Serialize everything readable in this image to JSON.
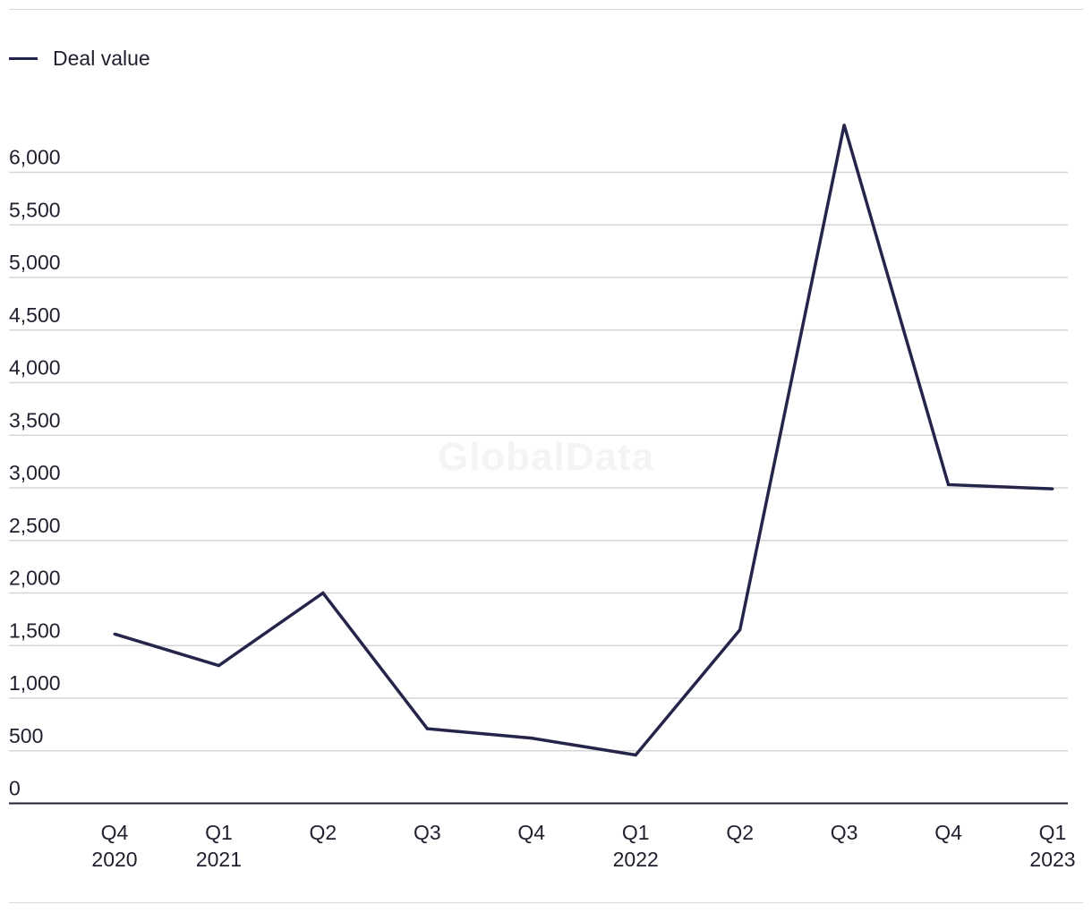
{
  "chart_data": {
    "type": "line",
    "title": "",
    "xlabel": "",
    "ylabel": "",
    "categories": [
      {
        "quarter": "Q4",
        "year": "2020"
      },
      {
        "quarter": "Q1",
        "year": "2021"
      },
      {
        "quarter": "Q2",
        "year": ""
      },
      {
        "quarter": "Q3",
        "year": ""
      },
      {
        "quarter": "Q4",
        "year": ""
      },
      {
        "quarter": "Q1",
        "year": "2022"
      },
      {
        "quarter": "Q2",
        "year": ""
      },
      {
        "quarter": "Q3",
        "year": ""
      },
      {
        "quarter": "Q4",
        "year": ""
      },
      {
        "quarter": "Q1",
        "year": "2023"
      }
    ],
    "series": [
      {
        "name": "Deal value",
        "color": "#25244a",
        "values": [
          1610,
          1310,
          2000,
          710,
          620,
          460,
          1650,
          6450,
          3030,
          2990
        ]
      }
    ],
    "ylim": [
      0,
      6000
    ],
    "yticks": [
      "0",
      "500",
      "1,000",
      "1,500",
      "2,000",
      "2,500",
      "3,000",
      "3,500",
      "4,000",
      "4,500",
      "5,000",
      "5,500",
      "6,000"
    ],
    "grid": true,
    "legend_position": "top-left"
  },
  "legend": {
    "label": "Deal value"
  },
  "watermark": "GlobalData"
}
